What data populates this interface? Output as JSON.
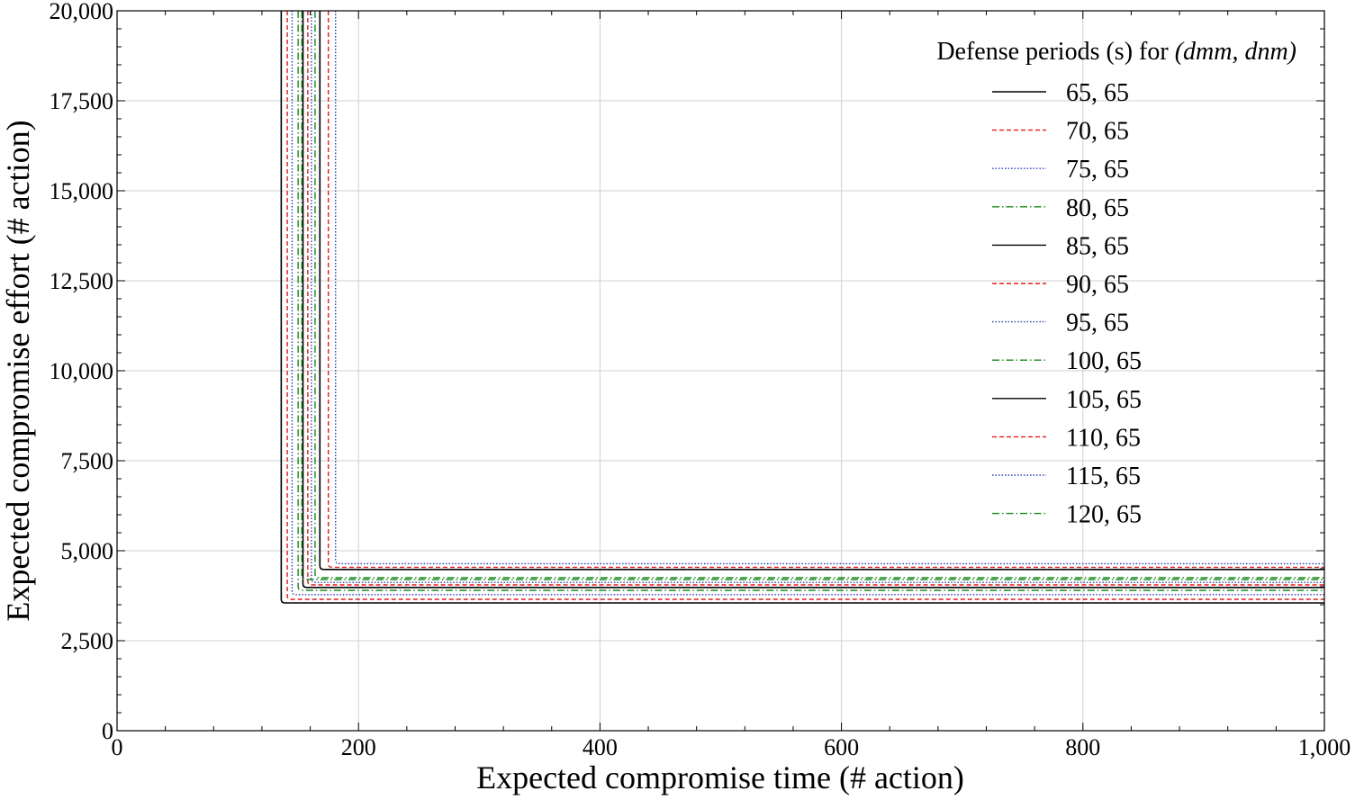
{
  "chart_data": {
    "type": "line",
    "title": "",
    "xlabel": "Expected compromise time (# action)",
    "ylabel": "Expected compromise effort (# action)",
    "xlim": [
      0,
      1000
    ],
    "ylim": [
      0,
      20000
    ],
    "xticks": [
      0,
      200,
      400,
      600,
      800,
      1000
    ],
    "xtick_labels": [
      "0",
      "200",
      "400",
      "600",
      "800",
      "1,000"
    ],
    "yticks": [
      0,
      2500,
      5000,
      7500,
      10000,
      12500,
      15000,
      17500,
      20000
    ],
    "ytick_labels": [
      "0",
      "2,500",
      "5,000",
      "7,500",
      "10,000",
      "12,500",
      "15,000",
      "17,500",
      "20,000"
    ],
    "grid": true,
    "legend": {
      "title": "Defense periods (s) for ",
      "title_math": "(dmm, dnm)",
      "placement": "top-right"
    },
    "series": [
      {
        "name": "65, 65",
        "color": "#000000",
        "style": "solid",
        "vertical_x": 136,
        "plateau_y": 3550
      },
      {
        "name": "70, 65",
        "color": "#e41a1c",
        "style": "dashed",
        "vertical_x": 141,
        "plateau_y": 3650
      },
      {
        "name": "75, 65",
        "color": "#2b3bb5",
        "style": "dotted",
        "vertical_x": 145,
        "plateau_y": 3780
      },
      {
        "name": "80, 65",
        "color": "#1a8a1a",
        "style": "dashdot",
        "vertical_x": 150,
        "plateau_y": 3900
      },
      {
        "name": "85, 65",
        "color": "#000000",
        "style": "solid",
        "vertical_x": 154,
        "plateau_y": 3980
      },
      {
        "name": "90, 65",
        "color": "#e41a1c",
        "style": "dashed",
        "vertical_x": 158,
        "plateau_y": 4050
      },
      {
        "name": "95, 65",
        "color": "#2b3bb5",
        "style": "dotted",
        "vertical_x": 161,
        "plateau_y": 4120
      },
      {
        "name": "100, 65",
        "color": "#1a8a1a",
        "style": "dashdot",
        "vertical_x": 164,
        "plateau_y": 4250
      },
      {
        "name": "105, 65",
        "color": "#000000",
        "style": "solid",
        "vertical_x": 168,
        "plateau_y": 4480
      },
      {
        "name": "110, 65",
        "color": "#e41a1c",
        "style": "dashed",
        "vertical_x": 175,
        "plateau_y": 4540
      },
      {
        "name": "115, 65",
        "color": "#2b3bb5",
        "style": "dotted",
        "vertical_x": 181,
        "plateau_y": 4640
      },
      {
        "name": "120, 65",
        "color": "#1a8a1a",
        "style": "dashdot",
        "vertical_x": 153,
        "plateau_y": 4200
      }
    ]
  }
}
